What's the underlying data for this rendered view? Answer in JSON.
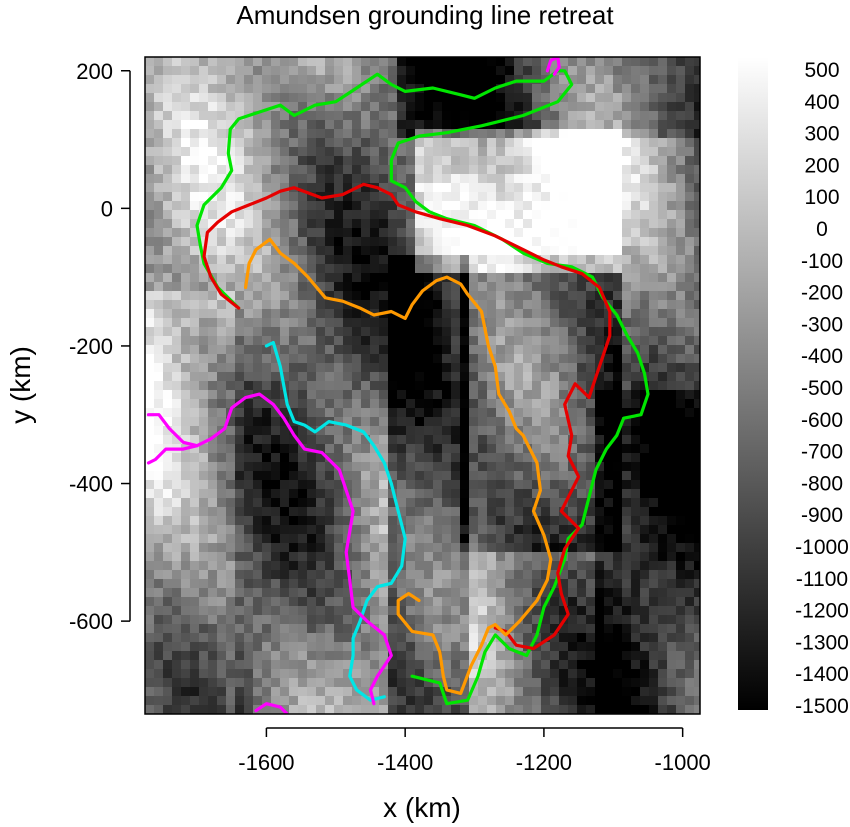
{
  "chart_data": {
    "type": "heatmap",
    "title": "Amundsen grounding line retreat",
    "xlabel": "x (km)",
    "ylabel": "y (km)",
    "xlim": [
      -1775,
      -975
    ],
    "ylim": [
      -735,
      220
    ],
    "x_ticks": [
      {
        "value": -1600,
        "label": "-1600"
      },
      {
        "value": -1400,
        "label": "-1400"
      },
      {
        "value": -1200,
        "label": "-1200"
      },
      {
        "value": -1000,
        "label": "-1000"
      }
    ],
    "y_ticks": [
      {
        "value": 200,
        "label": "200"
      },
      {
        "value": 0,
        "label": "0"
      },
      {
        "value": -200,
        "label": "-200"
      },
      {
        "value": -400,
        "label": "-400"
      },
      {
        "value": -600,
        "label": "-600"
      }
    ],
    "colorbar": {
      "min": -1500,
      "max": 500,
      "colors": [
        "#000000",
        "#ffffff"
      ],
      "tick_labels": [
        "500",
        "400",
        "300",
        "200",
        "100",
        "0",
        "-100",
        "-200",
        "-300",
        "-400",
        "-500",
        "-600",
        "-700",
        "-800",
        "-900",
        "-1000",
        "-1100",
        "-1200",
        "-1300",
        "-1400",
        "-1500"
      ]
    },
    "grounding_lines": [
      {
        "color": "#00e600",
        "points": [
          [
            -1652,
            115
          ],
          [
            -1640,
            130
          ],
          [
            -1610,
            140
          ],
          [
            -1580,
            150
          ],
          [
            -1560,
            135
          ],
          [
            -1530,
            150
          ],
          [
            -1500,
            155
          ],
          [
            -1470,
            175
          ],
          [
            -1440,
            195
          ],
          [
            -1420,
            180
          ],
          [
            -1400,
            170
          ],
          [
            -1360,
            175
          ],
          [
            -1320,
            165
          ],
          [
            -1300,
            160
          ],
          [
            -1270,
            175
          ],
          [
            -1240,
            185
          ],
          [
            -1200,
            185
          ],
          [
            -1180,
            200
          ],
          [
            -1170,
            200
          ],
          [
            -1160,
            180
          ],
          [
            -1180,
            155
          ],
          [
            -1230,
            135
          ],
          [
            -1290,
            120
          ],
          [
            -1340,
            110
          ],
          [
            -1380,
            105
          ],
          [
            -1410,
            95
          ],
          [
            -1420,
            70
          ],
          [
            -1420,
            40
          ],
          [
            -1400,
            30
          ],
          [
            -1385,
            10
          ],
          [
            -1365,
            -5
          ],
          [
            -1340,
            -15
          ],
          [
            -1300,
            -25
          ],
          [
            -1260,
            -45
          ],
          [
            -1230,
            -65
          ],
          [
            -1195,
            -80
          ],
          [
            -1160,
            -85
          ],
          [
            -1130,
            -100
          ],
          [
            -1115,
            -130
          ],
          [
            -1095,
            -155
          ],
          [
            -1080,
            -185
          ],
          [
            -1065,
            -210
          ],
          [
            -1055,
            -240
          ],
          [
            -1050,
            -270
          ],
          [
            -1060,
            -300
          ],
          [
            -1085,
            -305
          ],
          [
            -1095,
            -330
          ],
          [
            -1110,
            -350
          ],
          [
            -1125,
            -380
          ],
          [
            -1135,
            -420
          ],
          [
            -1145,
            -460
          ],
          [
            -1165,
            -480
          ],
          [
            -1170,
            -510
          ],
          [
            -1185,
            -550
          ],
          [
            -1200,
            -580
          ],
          [
            -1210,
            -620
          ],
          [
            -1225,
            -650
          ],
          [
            -1250,
            -640
          ],
          [
            -1270,
            -620
          ],
          [
            -1285,
            -645
          ],
          [
            -1295,
            -680
          ],
          [
            -1310,
            -715
          ],
          [
            -1340,
            -720
          ],
          [
            -1350,
            -690
          ],
          [
            -1390,
            -680
          ]
        ]
      },
      {
        "color": "#00e600",
        "points": [
          [
            -1652,
            115
          ],
          [
            -1655,
            80
          ],
          [
            -1650,
            55
          ],
          [
            -1665,
            30
          ],
          [
            -1690,
            5
          ],
          [
            -1700,
            -25
          ],
          [
            -1695,
            -55
          ],
          [
            -1690,
            -80
          ],
          [
            -1670,
            -115
          ],
          [
            -1640,
            -145
          ]
        ]
      },
      {
        "color": "#e60000",
        "points": [
          [
            -1640,
            -145
          ],
          [
            -1665,
            -125
          ],
          [
            -1680,
            -100
          ],
          [
            -1690,
            -70
          ],
          [
            -1685,
            -35
          ],
          [
            -1670,
            -20
          ],
          [
            -1650,
            -5
          ],
          [
            -1625,
            5
          ],
          [
            -1600,
            15
          ],
          [
            -1580,
            25
          ],
          [
            -1560,
            30
          ],
          [
            -1520,
            15
          ],
          [
            -1490,
            20
          ],
          [
            -1460,
            35
          ],
          [
            -1440,
            30
          ],
          [
            -1420,
            20
          ],
          [
            -1410,
            5
          ],
          [
            -1385,
            -5
          ],
          [
            -1350,
            -15
          ],
          [
            -1310,
            -25
          ],
          [
            -1270,
            -40
          ],
          [
            -1230,
            -60
          ],
          [
            -1200,
            -75
          ],
          [
            -1175,
            -85
          ],
          [
            -1145,
            -95
          ],
          [
            -1120,
            -115
          ],
          [
            -1105,
            -150
          ],
          [
            -1105,
            -185
          ],
          [
            -1115,
            -215
          ],
          [
            -1125,
            -245
          ],
          [
            -1135,
            -275
          ],
          [
            -1155,
            -255
          ],
          [
            -1170,
            -285
          ],
          [
            -1160,
            -330
          ],
          [
            -1165,
            -360
          ],
          [
            -1150,
            -390
          ],
          [
            -1165,
            -420
          ],
          [
            -1175,
            -440
          ],
          [
            -1150,
            -465
          ],
          [
            -1170,
            -495
          ],
          [
            -1180,
            -530
          ],
          [
            -1175,
            -560
          ],
          [
            -1165,
            -590
          ],
          [
            -1185,
            -620
          ],
          [
            -1215,
            -640
          ],
          [
            -1240,
            -635
          ],
          [
            -1255,
            -615
          ],
          [
            -1270,
            -610
          ]
        ]
      },
      {
        "color": "#ff9900",
        "points": [
          [
            -1630,
            -115
          ],
          [
            -1625,
            -80
          ],
          [
            -1615,
            -60
          ],
          [
            -1595,
            -45
          ],
          [
            -1580,
            -65
          ],
          [
            -1560,
            -80
          ],
          [
            -1540,
            -100
          ],
          [
            -1515,
            -130
          ],
          [
            -1490,
            -135
          ],
          [
            -1465,
            -145
          ],
          [
            -1445,
            -155
          ],
          [
            -1420,
            -150
          ],
          [
            -1400,
            -160
          ],
          [
            -1390,
            -140
          ],
          [
            -1375,
            -120
          ],
          [
            -1355,
            -105
          ],
          [
            -1340,
            -100
          ],
          [
            -1320,
            -110
          ],
          [
            -1310,
            -125
          ],
          [
            -1290,
            -150
          ],
          [
            -1280,
            -200
          ],
          [
            -1270,
            -230
          ],
          [
            -1265,
            -270
          ],
          [
            -1250,
            -295
          ],
          [
            -1240,
            -320
          ],
          [
            -1230,
            -330
          ],
          [
            -1220,
            -350
          ],
          [
            -1210,
            -370
          ],
          [
            -1205,
            -410
          ],
          [
            -1215,
            -440
          ],
          [
            -1200,
            -475
          ],
          [
            -1190,
            -510
          ],
          [
            -1195,
            -540
          ],
          [
            -1210,
            -570
          ],
          [
            -1235,
            -600
          ],
          [
            -1255,
            -620
          ],
          [
            -1270,
            -605
          ],
          [
            -1280,
            -610
          ],
          [
            -1290,
            -635
          ],
          [
            -1305,
            -665
          ],
          [
            -1320,
            -705
          ],
          [
            -1340,
            -700
          ],
          [
            -1345,
            -680
          ],
          [
            -1350,
            -645
          ],
          [
            -1360,
            -620
          ],
          [
            -1390,
            -615
          ],
          [
            -1410,
            -590
          ],
          [
            -1410,
            -570
          ],
          [
            -1395,
            -560
          ],
          [
            -1380,
            -570
          ]
        ]
      },
      {
        "color": "#00e6e6",
        "points": [
          [
            -1600,
            -200
          ],
          [
            -1590,
            -195
          ],
          [
            -1580,
            -230
          ],
          [
            -1570,
            -285
          ],
          [
            -1560,
            -310
          ],
          [
            -1545,
            -315
          ],
          [
            -1530,
            -325
          ],
          [
            -1510,
            -310
          ],
          [
            -1485,
            -315
          ],
          [
            -1460,
            -325
          ],
          [
            -1445,
            -345
          ],
          [
            -1430,
            -370
          ],
          [
            -1420,
            -400
          ],
          [
            -1410,
            -440
          ],
          [
            -1400,
            -480
          ],
          [
            -1405,
            -520
          ],
          [
            -1420,
            -545
          ],
          [
            -1440,
            -550
          ],
          [
            -1455,
            -570
          ],
          [
            -1465,
            -600
          ],
          [
            -1475,
            -625
          ],
          [
            -1475,
            -650
          ],
          [
            -1480,
            -680
          ],
          [
            -1470,
            -700
          ],
          [
            -1450,
            -715
          ],
          [
            -1430,
            -710
          ]
        ]
      },
      {
        "color": "#ff00ff",
        "points": [
          [
            -1770,
            -300
          ],
          [
            -1755,
            -300
          ],
          [
            -1740,
            -320
          ],
          [
            -1720,
            -340
          ],
          [
            -1700,
            -345
          ],
          [
            -1680,
            -335
          ],
          [
            -1660,
            -320
          ],
          [
            -1650,
            -290
          ],
          [
            -1630,
            -275
          ],
          [
            -1610,
            -270
          ],
          [
            -1590,
            -285
          ],
          [
            -1575,
            -305
          ],
          [
            -1560,
            -330
          ],
          [
            -1545,
            -350
          ],
          [
            -1520,
            -355
          ],
          [
            -1495,
            -380
          ],
          [
            -1485,
            -410
          ],
          [
            -1475,
            -440
          ],
          [
            -1480,
            -470
          ],
          [
            -1485,
            -500
          ],
          [
            -1480,
            -540
          ],
          [
            -1475,
            -580
          ],
          [
            -1455,
            -600
          ],
          [
            -1430,
            -620
          ],
          [
            -1420,
            -650
          ],
          [
            -1440,
            -680
          ],
          [
            -1450,
            -700
          ],
          [
            -1445,
            -720
          ]
        ]
      },
      {
        "color": "#ff00ff",
        "points": [
          [
            -1770,
            -370
          ],
          [
            -1760,
            -365
          ],
          [
            -1745,
            -350
          ],
          [
            -1720,
            -350
          ],
          [
            -1700,
            -345
          ]
        ]
      },
      {
        "color": "#ff00ff",
        "points": [
          [
            -1570,
            -735
          ],
          [
            -1580,
            -725
          ],
          [
            -1600,
            -720
          ],
          [
            -1615,
            -730
          ]
        ]
      },
      {
        "color": "#ff00ff",
        "points": [
          [
            -1195,
            200
          ],
          [
            -1190,
            215
          ],
          [
            -1180,
            220
          ],
          [
            -1178,
            205
          ],
          [
            -1185,
            195
          ]
        ]
      }
    ]
  }
}
